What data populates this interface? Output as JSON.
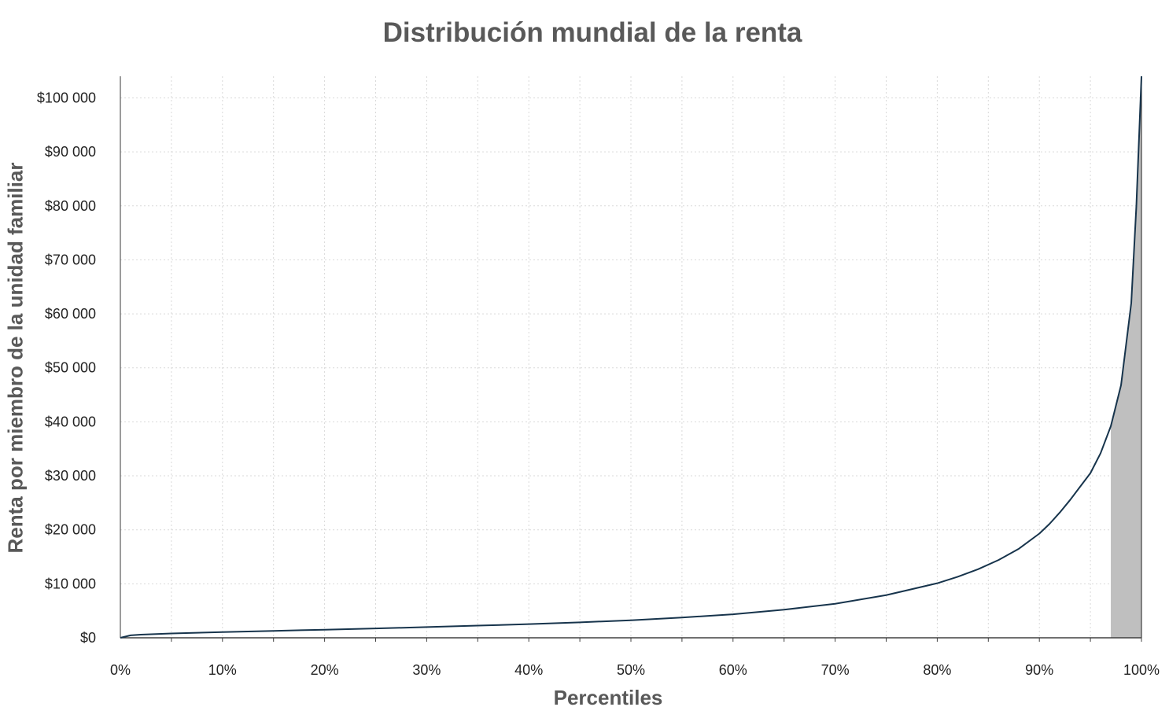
{
  "chart_data": {
    "type": "line",
    "title": "Distribución mundial de la renta",
    "xlabel": "Percentiles",
    "ylabel": "Renta por miembro de la unidad familiar",
    "xlim": [
      0,
      100
    ],
    "ylim": [
      0,
      104000
    ],
    "x_ticks": [
      0,
      10,
      20,
      30,
      40,
      50,
      60,
      70,
      80,
      90,
      100
    ],
    "x_tick_labels": [
      "0%",
      "10%",
      "20%",
      "30%",
      "40%",
      "50%",
      "60%",
      "70%",
      "80%",
      "90%",
      "100%"
    ],
    "y_ticks": [
      0,
      10000,
      20000,
      30000,
      40000,
      50000,
      60000,
      70000,
      80000,
      90000,
      100000
    ],
    "y_tick_labels": [
      "$0",
      "$10 000",
      "$20 000",
      "$30 000",
      "$40 000",
      "$50 000",
      "$60 000",
      "$70 000",
      "$80 000",
      "$90 000",
      "$100 000"
    ],
    "grid": true,
    "series": [
      {
        "x": [
          0,
          1,
          2,
          5,
          10,
          15,
          20,
          25,
          30,
          35,
          40,
          45,
          50,
          55,
          60,
          65,
          70,
          75,
          80,
          82,
          84,
          86,
          88,
          90,
          91,
          92,
          93,
          94,
          95,
          96,
          97,
          98,
          99,
          99.5,
          100
        ],
        "values": [
          0,
          450,
          580,
          800,
          1050,
          1280,
          1500,
          1730,
          1980,
          2250,
          2530,
          2860,
          3250,
          3750,
          4350,
          5200,
          6300,
          7900,
          10100,
          11300,
          12700,
          14400,
          16500,
          19300,
          21100,
          23200,
          25500,
          28000,
          30500,
          34200,
          39200,
          46800,
          62000,
          80000,
          104000
        ],
        "color": "#17344c"
      }
    ],
    "highlight": {
      "x_from": 97,
      "x_to": 100,
      "color": "#bfbfbf"
    }
  }
}
